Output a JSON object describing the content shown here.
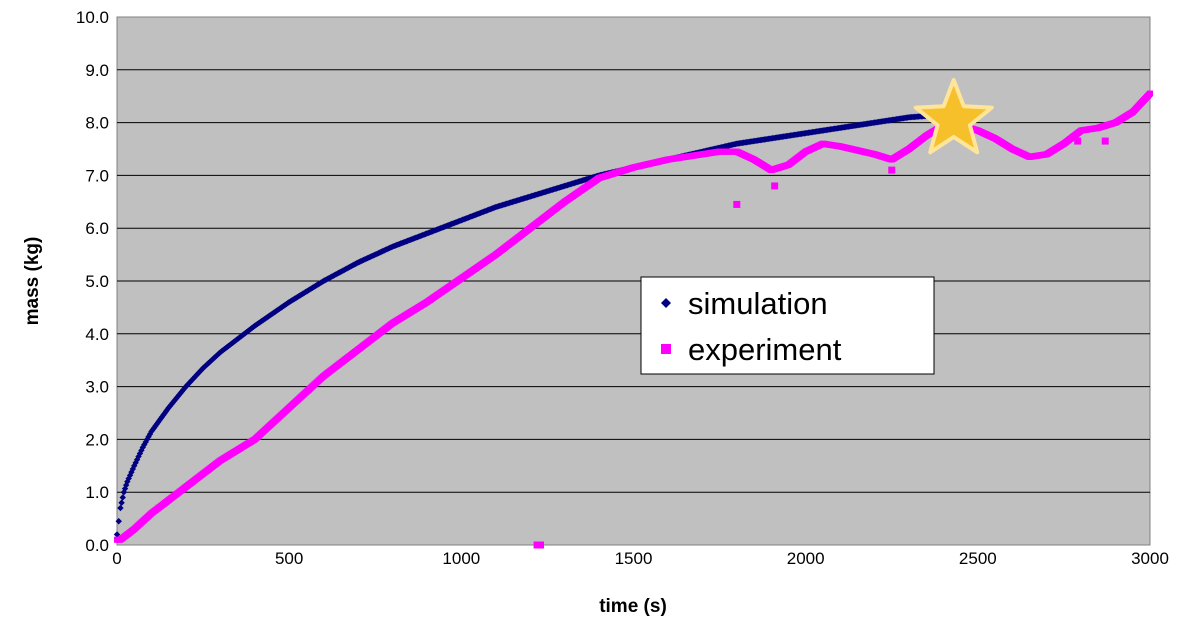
{
  "chart_data": {
    "type": "scatter",
    "title": "",
    "xlabel": "time (s)",
    "ylabel": "mass (kg)",
    "xlim": [
      0,
      3000
    ],
    "ylim": [
      0,
      10
    ],
    "x_ticks": [
      "0",
      "500",
      "1000",
      "1500",
      "2000",
      "2500",
      "3000"
    ],
    "y_ticks": [
      "0.0",
      "1.0",
      "2.0",
      "3.0",
      "4.0",
      "5.0",
      "6.0",
      "7.0",
      "8.0",
      "9.0",
      "10.0"
    ],
    "grid": "horizontal",
    "plot_background": "#c0c0c0",
    "legend_position": "center-right",
    "series": [
      {
        "name": "simulation",
        "color": "#000080",
        "marker": "diamond",
        "x": [
          0,
          5,
          10,
          20,
          30,
          50,
          75,
          100,
          150,
          200,
          250,
          300,
          400,
          500,
          600,
          700,
          800,
          900,
          1000,
          1100,
          1200,
          1300,
          1400,
          1500,
          1600,
          1700,
          1800,
          1900,
          2000,
          2100,
          2200,
          2300,
          2400
        ],
        "y": [
          0.2,
          0.45,
          0.7,
          1.0,
          1.2,
          1.5,
          1.85,
          2.15,
          2.6,
          3.0,
          3.35,
          3.65,
          4.15,
          4.6,
          5.0,
          5.35,
          5.65,
          5.9,
          6.15,
          6.4,
          6.6,
          6.8,
          7.0,
          7.15,
          7.3,
          7.45,
          7.6,
          7.7,
          7.8,
          7.9,
          8.0,
          8.1,
          8.15
        ]
      },
      {
        "name": "experiment",
        "color": "#ff00ff",
        "marker": "square",
        "x": [
          0,
          10,
          50,
          100,
          200,
          300,
          400,
          500,
          550,
          600,
          650,
          700,
          800,
          850,
          900,
          1000,
          1100,
          1200,
          1300,
          1400,
          1450,
          1500,
          1600,
          1700,
          1750,
          1800,
          1850,
          1900,
          1950,
          2000,
          2050,
          2100,
          2200,
          2250,
          2300,
          2350,
          2400,
          2450,
          2500,
          2550,
          2600,
          2650,
          2700,
          2750,
          2800,
          2850,
          2900,
          2950,
          3000
        ],
        "y": [
          0.1,
          0.1,
          0.3,
          0.6,
          1.1,
          1.6,
          2.0,
          2.6,
          2.9,
          3.2,
          3.45,
          3.7,
          4.2,
          4.4,
          4.6,
          5.05,
          5.5,
          6.0,
          6.5,
          6.95,
          7.05,
          7.15,
          7.3,
          7.4,
          7.45,
          7.45,
          7.3,
          7.1,
          7.2,
          7.45,
          7.6,
          7.55,
          7.4,
          7.3,
          7.5,
          7.75,
          7.95,
          7.95,
          7.85,
          7.7,
          7.5,
          7.35,
          7.4,
          7.6,
          7.85,
          7.9,
          8.0,
          8.2,
          8.55
        ],
        "outliers_x": [
          1220,
          1230,
          1800,
          1910,
          2250,
          2790,
          2870
        ],
        "outliers_y": [
          0.0,
          0.0,
          6.45,
          6.8,
          7.1,
          7.65,
          7.65
        ]
      }
    ],
    "annotations": [
      {
        "type": "star",
        "x": 2430,
        "y": 8.05,
        "fill": "#f5c02a",
        "stroke": "#ffe599"
      }
    ]
  }
}
